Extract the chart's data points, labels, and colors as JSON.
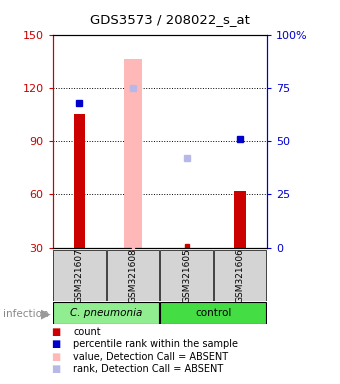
{
  "title": "GDS3573 / 208022_s_at",
  "samples": [
    "GSM321607",
    "GSM321608",
    "GSM321605",
    "GSM321606"
  ],
  "ylim_left": [
    30,
    150
  ],
  "ylim_right": [
    0,
    100
  ],
  "yticks_left": [
    30,
    60,
    90,
    120,
    150
  ],
  "yticks_right": [
    0,
    25,
    50,
    75,
    100
  ],
  "yticklabels_right": [
    "0",
    "25",
    "50",
    "75",
    "100%"
  ],
  "left_tick_color": "#cc0000",
  "right_tick_color": "#0000cc",
  "bar_values": [
    105,
    null,
    null,
    62
  ],
  "absent_bar_values": [
    null,
    136,
    null,
    null
  ],
  "percentile_values_right": [
    68,
    null,
    null,
    51
  ],
  "absent_rank_values_right": [
    null,
    75,
    42,
    null
  ],
  "absent_tiny_values": [
    null,
    null,
    null,
    1
  ],
  "x_positions": [
    1,
    2,
    3,
    4
  ],
  "legend_items": [
    {
      "color": "#cc0000",
      "label": "count"
    },
    {
      "color": "#0000cc",
      "label": "percentile rank within the sample"
    },
    {
      "color": "#ffb8b8",
      "label": "value, Detection Call = ABSENT"
    },
    {
      "color": "#b8b8e8",
      "label": "rank, Detection Call = ABSENT"
    }
  ],
  "group1_color": "#90ee90",
  "group2_color": "#44dd44",
  "group1_label": "C. pneumonia",
  "group2_label": "control"
}
